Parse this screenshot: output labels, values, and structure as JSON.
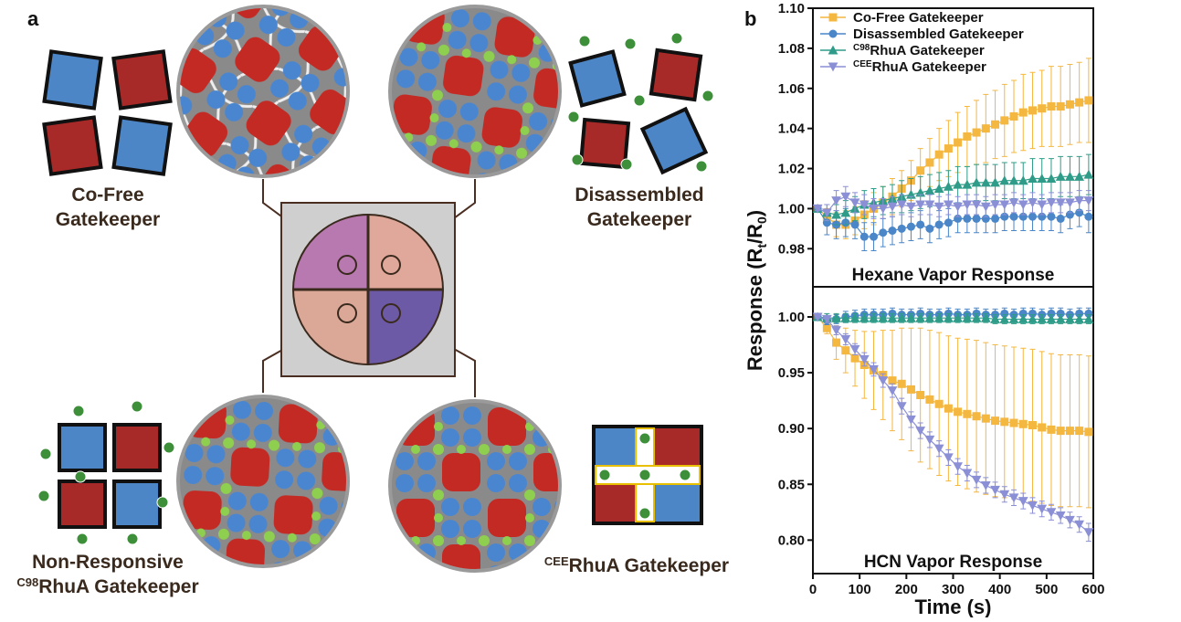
{
  "panel_a": {
    "label": "a",
    "captions": {
      "co_free": [
        "Co-Free",
        "Gatekeeper"
      ],
      "disassembled": [
        "Disassembled",
        "Gatekeeper"
      ],
      "non_responsive": {
        "line1": "Non-Responsive",
        "sup": "C98",
        "text": "RhuA Gatekeeper"
      },
      "cee": {
        "sup": "CEE",
        "text": "RhuA Gatekeeper"
      }
    }
  },
  "panel_b": {
    "label": "b",
    "y_label": [
      "Response (R",
      "t",
      "/R",
      "0",
      ")"
    ]
  },
  "chart_data": [
    {
      "type": "line",
      "title": "Hexane Vapor Response",
      "legend": "upper left",
      "x": [
        10,
        30,
        50,
        70,
        90,
        110,
        130,
        150,
        170,
        190,
        210,
        230,
        250,
        270,
        290,
        310,
        330,
        350,
        370,
        390,
        410,
        430,
        450,
        470,
        490,
        510,
        530,
        550,
        570,
        590
      ],
      "xlim": [
        0,
        600
      ],
      "ylim": [
        0.961,
        1.1
      ],
      "yticks": [
        0.98,
        {
          "value": 1.0,
          "label": "1.00"
        },
        1.02,
        1.04,
        1.06,
        1.08,
        {
          "value": 1.1,
          "label": "1.10"
        }
      ],
      "series": [
        {
          "name": "Co-Free Gatekeeper",
          "color": "#f4b740",
          "marker": "square",
          "values": [
            1.0,
            0.996,
            0.992,
            0.992,
            0.994,
            0.997,
            1.0,
            1.003,
            1.006,
            1.01,
            1.014,
            1.019,
            1.023,
            1.027,
            1.03,
            1.033,
            1.036,
            1.038,
            1.04,
            1.042,
            1.044,
            1.046,
            1.048,
            1.049,
            1.05,
            1.051,
            1.051,
            1.052,
            1.053,
            1.054
          ],
          "errors": [
            0.001,
            0.004,
            0.006,
            0.007,
            0.007,
            0.007,
            0.008,
            0.008,
            0.009,
            0.009,
            0.01,
            0.011,
            0.012,
            0.013,
            0.014,
            0.015,
            0.015,
            0.016,
            0.017,
            0.017,
            0.018,
            0.018,
            0.019,
            0.019,
            0.019,
            0.02,
            0.02,
            0.02,
            0.02,
            0.021
          ]
        },
        {
          "name": "Disassembled Gatekeeper",
          "color": "#4a86c8",
          "marker": "circle",
          "values": [
            1.0,
            0.993,
            0.992,
            0.993,
            0.992,
            0.986,
            0.986,
            0.988,
            0.989,
            0.99,
            0.991,
            0.992,
            0.99,
            0.992,
            0.993,
            0.995,
            0.995,
            0.995,
            0.995,
            0.995,
            0.996,
            0.996,
            0.996,
            0.996,
            0.996,
            0.996,
            0.995,
            0.997,
            0.998,
            0.996
          ],
          "errors": [
            0.001,
            0.006,
            0.007,
            0.007,
            0.007,
            0.007,
            0.007,
            0.007,
            0.007,
            0.007,
            0.007,
            0.007,
            0.007,
            0.007,
            0.007,
            0.007,
            0.007,
            0.007,
            0.007,
            0.007,
            0.007,
            0.007,
            0.007,
            0.007,
            0.007,
            0.007,
            0.007,
            0.007,
            0.007,
            0.008
          ]
        },
        {
          "name": "RhuA Gatekeeper",
          "name_sup": "C98",
          "color": "#2e9c88",
          "marker": "triangle-up",
          "values": [
            1.0,
            0.998,
            0.997,
            0.998,
            1.0,
            1.002,
            1.003,
            1.004,
            1.005,
            1.006,
            1.007,
            1.008,
            1.009,
            1.01,
            1.011,
            1.012,
            1.012,
            1.013,
            1.013,
            1.013,
            1.014,
            1.014,
            1.014,
            1.015,
            1.015,
            1.015,
            1.016,
            1.016,
            1.016,
            1.017
          ],
          "errors": [
            0.001,
            0.004,
            0.005,
            0.006,
            0.006,
            0.007,
            0.007,
            0.007,
            0.007,
            0.008,
            0.008,
            0.008,
            0.008,
            0.008,
            0.008,
            0.009,
            0.009,
            0.009,
            0.009,
            0.009,
            0.009,
            0.009,
            0.009,
            0.01,
            0.01,
            0.01,
            0.01,
            0.01,
            0.01,
            0.01
          ]
        },
        {
          "name": "RhuA Gatekeeper",
          "name_sup": "CEE",
          "color": "#8b8fd6",
          "marker": "triangle-down",
          "values": [
            1.0,
            0.998,
            1.004,
            1.006,
            1.003,
            1.002,
            1.0,
            1.0,
            1.001,
            1.002,
            1.001,
            1.002,
            1.002,
            1.001,
            1.002,
            1.001,
            1.002,
            1.002,
            1.001,
            1.002,
            1.002,
            1.003,
            1.002,
            1.003,
            1.002,
            1.003,
            1.003,
            1.003,
            1.004,
            1.004
          ],
          "errors": [
            0.001,
            0.004,
            0.005,
            0.005,
            0.005,
            0.005,
            0.005,
            0.005,
            0.005,
            0.005,
            0.005,
            0.005,
            0.005,
            0.005,
            0.005,
            0.005,
            0.005,
            0.005,
            0.005,
            0.005,
            0.005,
            0.005,
            0.005,
            0.005,
            0.005,
            0.005,
            0.005,
            0.005,
            0.005,
            0.005
          ]
        }
      ]
    },
    {
      "type": "line",
      "title": "HCN Vapor Response",
      "x_label": "Time (s)",
      "x": [
        10,
        30,
        50,
        70,
        90,
        110,
        130,
        150,
        170,
        190,
        210,
        230,
        250,
        270,
        290,
        310,
        330,
        350,
        370,
        390,
        410,
        430,
        450,
        470,
        490,
        510,
        530,
        550,
        570,
        590
      ],
      "xlim": [
        0,
        600
      ],
      "xticks": [
        0,
        100,
        200,
        300,
        400,
        500,
        600
      ],
      "ylim": [
        0.77,
        1.027
      ],
      "yticks": [
        {
          "value": 0.8,
          "label": "0.80"
        },
        0.85,
        {
          "value": 0.9,
          "label": "0.90"
        },
        0.95,
        {
          "value": 1.0,
          "label": "1.00"
        }
      ],
      "series": [
        {
          "name": "Co-Free Gatekeeper",
          "color": "#f4b740",
          "marker": "square",
          "values": [
            1.0,
            0.99,
            0.977,
            0.97,
            0.963,
            0.957,
            0.952,
            0.948,
            0.943,
            0.94,
            0.935,
            0.93,
            0.926,
            0.922,
            0.918,
            0.915,
            0.913,
            0.911,
            0.909,
            0.907,
            0.906,
            0.905,
            0.904,
            0.903,
            0.901,
            0.899,
            0.898,
            0.898,
            0.898,
            0.897
          ],
          "errors": [
            0.001,
            0.005,
            0.015,
            0.02,
            0.025,
            0.03,
            0.035,
            0.04,
            0.045,
            0.05,
            0.055,
            0.06,
            0.062,
            0.064,
            0.065,
            0.066,
            0.067,
            0.068,
            0.068,
            0.068,
            0.068,
            0.068,
            0.068,
            0.068,
            0.068,
            0.068,
            0.068,
            0.068,
            0.068,
            0.068
          ]
        },
        {
          "name": "Disassembled Gatekeeper",
          "color": "#4a86c8",
          "marker": "circle",
          "values": [
            1.0,
            0.997,
            0.998,
            1.0,
            1.001,
            1.002,
            1.002,
            1.002,
            1.003,
            1.002,
            1.002,
            1.003,
            1.002,
            1.002,
            1.003,
            1.002,
            1.002,
            1.003,
            1.002,
            1.002,
            1.003,
            1.002,
            1.003,
            1.003,
            1.002,
            1.003,
            1.003,
            1.002,
            1.003,
            1.003
          ],
          "errors": [
            0.001,
            0.004,
            0.004,
            0.005,
            0.005,
            0.005,
            0.005,
            0.005,
            0.005,
            0.005,
            0.005,
            0.005,
            0.005,
            0.005,
            0.005,
            0.005,
            0.005,
            0.005,
            0.005,
            0.005,
            0.005,
            0.005,
            0.005,
            0.005,
            0.005,
            0.005,
            0.005,
            0.005,
            0.005,
            0.005
          ]
        },
        {
          "name": "RhuA Gatekeeper",
          "name_sup": "C98",
          "color": "#2e9c88",
          "marker": "triangle-up",
          "values": [
            1.0,
            0.999,
            0.999,
            0.999,
            0.999,
            0.999,
            0.999,
            0.999,
            0.999,
            0.999,
            0.999,
            0.999,
            0.999,
            0.999,
            0.999,
            0.999,
            0.999,
            0.999,
            0.999,
            0.998,
            0.998,
            0.998,
            0.998,
            0.998,
            0.998,
            0.998,
            0.998,
            0.998,
            0.998,
            0.998
          ],
          "errors": [
            0.001,
            0.004,
            0.004,
            0.004,
            0.004,
            0.004,
            0.004,
            0.004,
            0.004,
            0.004,
            0.004,
            0.004,
            0.004,
            0.004,
            0.004,
            0.004,
            0.004,
            0.004,
            0.004,
            0.004,
            0.004,
            0.004,
            0.004,
            0.004,
            0.004,
            0.004,
            0.004,
            0.004,
            0.004,
            0.004
          ]
        },
        {
          "name": "RhuA Gatekeeper",
          "name_sup": "CEE",
          "color": "#8b8fd6",
          "marker": "triangle-down",
          "values": [
            1.0,
            0.998,
            0.988,
            0.98,
            0.971,
            0.962,
            0.953,
            0.943,
            0.934,
            0.92,
            0.908,
            0.898,
            0.89,
            0.882,
            0.874,
            0.866,
            0.86,
            0.854,
            0.849,
            0.845,
            0.841,
            0.838,
            0.835,
            0.831,
            0.828,
            0.825,
            0.822,
            0.818,
            0.814,
            0.807
          ],
          "errors": [
            0.001,
            0.003,
            0.004,
            0.005,
            0.005,
            0.006,
            0.006,
            0.006,
            0.006,
            0.007,
            0.007,
            0.007,
            0.007,
            0.007,
            0.007,
            0.007,
            0.007,
            0.007,
            0.007,
            0.007,
            0.007,
            0.007,
            0.007,
            0.007,
            0.007,
            0.007,
            0.007,
            0.007,
            0.007,
            0.008
          ]
        }
      ]
    }
  ]
}
